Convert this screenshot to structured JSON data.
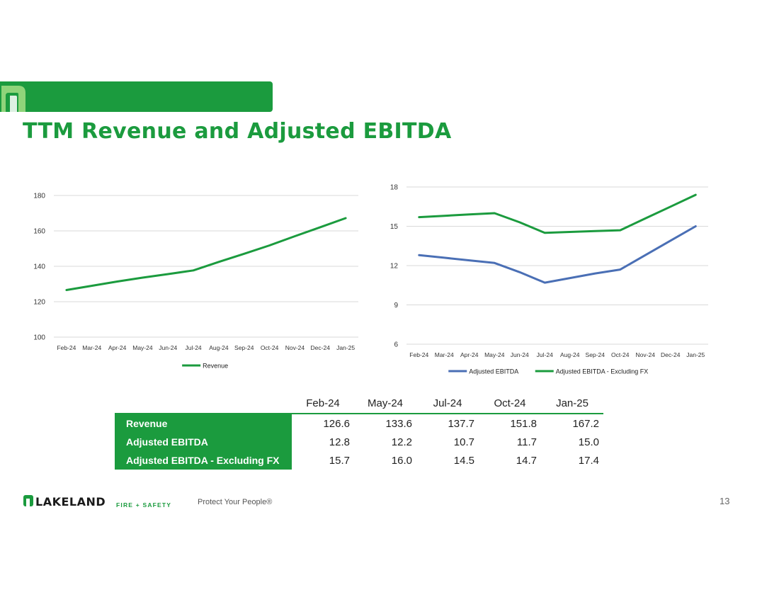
{
  "page": {
    "title": "TTM Revenue and Adjusted EBITDA",
    "page_number": "13",
    "tagline": "Protect Your People®",
    "logo_word": "LAKELAND",
    "logo_sub": "FIRE + SAFETY"
  },
  "colors": {
    "brand_green": "#1b9b3e",
    "ebitda_blue": "#4a6fb5",
    "grid": "#d9d9d9"
  },
  "chart_data": [
    {
      "type": "line",
      "categories": [
        "Feb-24",
        "Mar-24",
        "Apr-24",
        "May-24",
        "Jun-24",
        "Jul-24",
        "Aug-24",
        "Sep-24",
        "Oct-24",
        "Nov-24",
        "Dec-24",
        "Jan-25"
      ],
      "series": [
        {
          "name": "Revenue",
          "color": "#1b9b3e",
          "values": [
            126.6,
            129.0,
            131.4,
            133.6,
            135.6,
            137.7,
            142.5,
            147.1,
            151.8,
            157.0,
            162.1,
            167.2
          ]
        }
      ],
      "ylim": [
        100,
        180
      ],
      "yticks": [
        100,
        120,
        140,
        160,
        180
      ],
      "grid": true,
      "legend": "bottom"
    },
    {
      "type": "line",
      "categories": [
        "Feb-24",
        "Mar-24",
        "Apr-24",
        "May-24",
        "Jun-24",
        "Jul-24",
        "Aug-24",
        "Sep-24",
        "Oct-24",
        "Nov-24",
        "Dec-24",
        "Jan-25"
      ],
      "series": [
        {
          "name": "Adjusted EBITDA",
          "color": "#4a6fb5",
          "values": [
            12.8,
            12.6,
            12.4,
            12.2,
            11.5,
            10.7,
            11.05,
            11.4,
            11.7,
            12.8,
            13.9,
            15.0
          ]
        },
        {
          "name": "Adjusted EBITDA - Excluding FX",
          "color": "#1b9b3e",
          "values": [
            15.7,
            15.8,
            15.9,
            16.0,
            15.3,
            14.5,
            14.57,
            14.63,
            14.7,
            15.6,
            16.5,
            17.4
          ]
        }
      ],
      "ylim": [
        6,
        18
      ],
      "yticks": [
        6,
        9,
        12,
        15,
        18
      ],
      "grid": true,
      "legend": "bottom"
    }
  ],
  "table": {
    "columns": [
      "Feb-24",
      "May-24",
      "Jul-24",
      "Oct-24",
      "Jan-25"
    ],
    "rows": [
      {
        "label": "Revenue",
        "values": [
          "126.6",
          "133.6",
          "137.7",
          "151.8",
          "167.2"
        ]
      },
      {
        "label": "Adjusted EBITDA",
        "values": [
          "12.8",
          "12.2",
          "10.7",
          "11.7",
          "15.0"
        ]
      },
      {
        "label": "Adjusted EBITDA - Excluding FX",
        "values": [
          "15.7",
          "16.0",
          "14.5",
          "14.7",
          "17.4"
        ]
      }
    ]
  }
}
